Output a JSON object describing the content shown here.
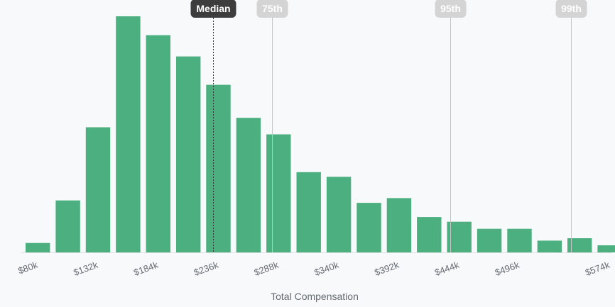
{
  "chart_data": {
    "type": "bar",
    "title": "",
    "xlabel": "Total Compensation",
    "ylabel": "",
    "bar_color": "#4caf7f",
    "background": "#f7f9fb",
    "x_domain": [
      80,
      586
    ],
    "bin_width": 26,
    "ylim": [
      0,
      100
    ],
    "grid": false,
    "x_ticks": [
      {
        "value": 80,
        "label": "$80k"
      },
      {
        "value": 132,
        "label": "$132k"
      },
      {
        "value": 184,
        "label": "$184k"
      },
      {
        "value": 236,
        "label": "$236k"
      },
      {
        "value": 288,
        "label": "$288k"
      },
      {
        "value": 340,
        "label": "$340k"
      },
      {
        "value": 392,
        "label": "$392k"
      },
      {
        "value": 444,
        "label": "$444k"
      },
      {
        "value": 496,
        "label": "$496k"
      },
      {
        "value": 574,
        "label": "$574k"
      }
    ],
    "bins": [
      80,
      106,
      132,
      158,
      184,
      210,
      236,
      262,
      288,
      314,
      340,
      366,
      392,
      418,
      444,
      470,
      496,
      522,
      548,
      574
    ],
    "values": [
      4,
      22,
      53,
      100,
      92,
      83,
      71,
      57,
      50,
      34,
      32,
      21,
      23,
      15,
      13,
      10,
      10,
      5,
      6,
      3
    ],
    "percentiles": [
      {
        "label": "Median",
        "value": 242,
        "style": "dark"
      },
      {
        "label": "75th",
        "value": 293,
        "style": "light"
      },
      {
        "label": "95th",
        "value": 447,
        "style": "light"
      },
      {
        "label": "99th",
        "value": 551,
        "style": "light"
      }
    ],
    "colors": {
      "median_tag": "#3d3d3d",
      "other_tag": "#d4d4d4",
      "median_line": "#333333",
      "other_line": "#c4c4c4",
      "baseline": "#dde1e4"
    }
  }
}
